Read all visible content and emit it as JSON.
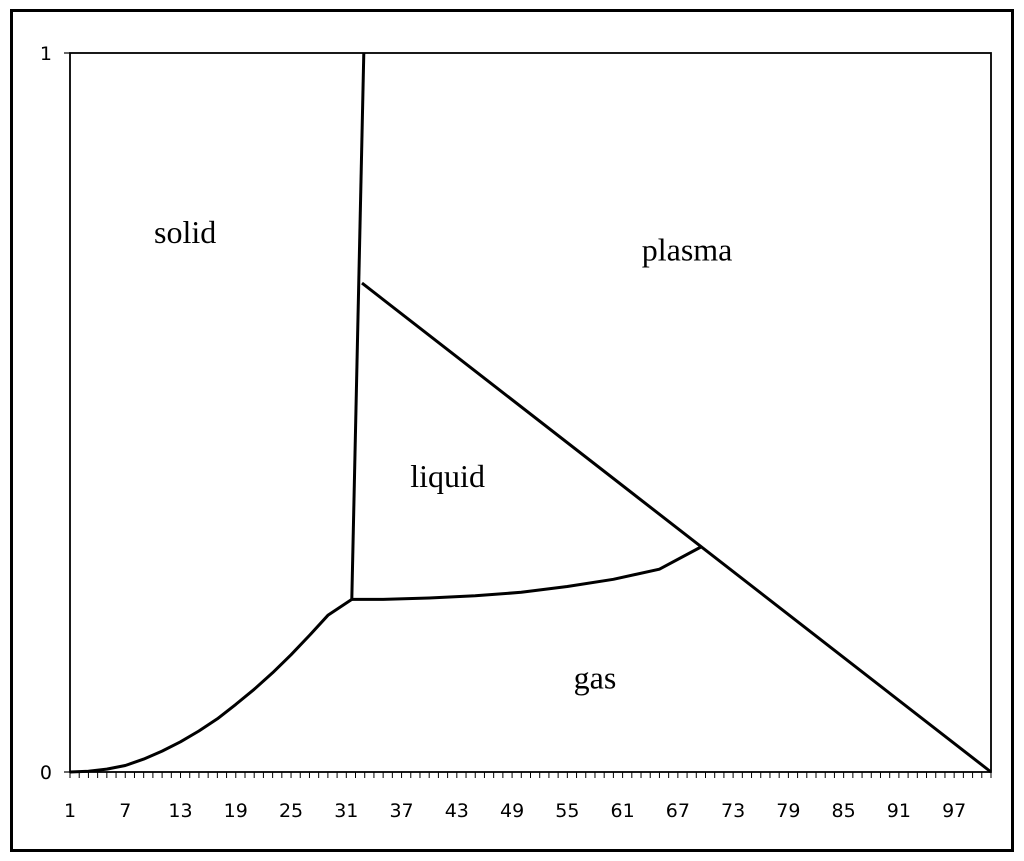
{
  "chart_data": {
    "type": "line",
    "title": "",
    "xlabel": "",
    "ylabel": "",
    "xlim": [
      1,
      101
    ],
    "ylim": [
      0,
      1
    ],
    "grid": false,
    "legend": "none",
    "x_tick_labels": [
      "1",
      "7",
      "13",
      "19",
      "25",
      "31",
      "37",
      "43",
      "49",
      "55",
      "61",
      "67",
      "73",
      "79",
      "85",
      "91",
      "97"
    ],
    "y_tick_labels": [
      "0",
      "1"
    ],
    "regions": [
      {
        "name": "solid",
        "x": 13.5,
        "y": 0.75
      },
      {
        "name": "plasma",
        "x": 68,
        "y": 0.725
      },
      {
        "name": "liquid",
        "x": 42,
        "y": 0.41
      },
      {
        "name": "gas",
        "x": 58,
        "y": 0.13
      }
    ],
    "series": [
      {
        "x": [
          1,
          3,
          5,
          7,
          9,
          11,
          13,
          15,
          17,
          19,
          21,
          23,
          25,
          27,
          29,
          31.6
        ],
        "y": [
          0,
          0.001,
          0.004,
          0.009,
          0.018,
          0.029,
          0.042,
          0.057,
          0.074,
          0.094,
          0.115,
          0.138,
          0.163,
          0.19,
          0.218,
          0.24
        ]
      },
      {
        "x": [
          31.6,
          32.9
        ],
        "y": [
          0.24,
          1.0
        ]
      },
      {
        "x": [
          31.6,
          35,
          40,
          45,
          50,
          55,
          60,
          65,
          69.5
        ],
        "y": [
          0.24,
          0.24,
          0.242,
          0.245,
          0.25,
          0.258,
          0.268,
          0.282,
          0.313
        ]
      },
      {
        "x": [
          32.7,
          101
        ],
        "y": [
          0.68,
          0
        ]
      }
    ]
  }
}
